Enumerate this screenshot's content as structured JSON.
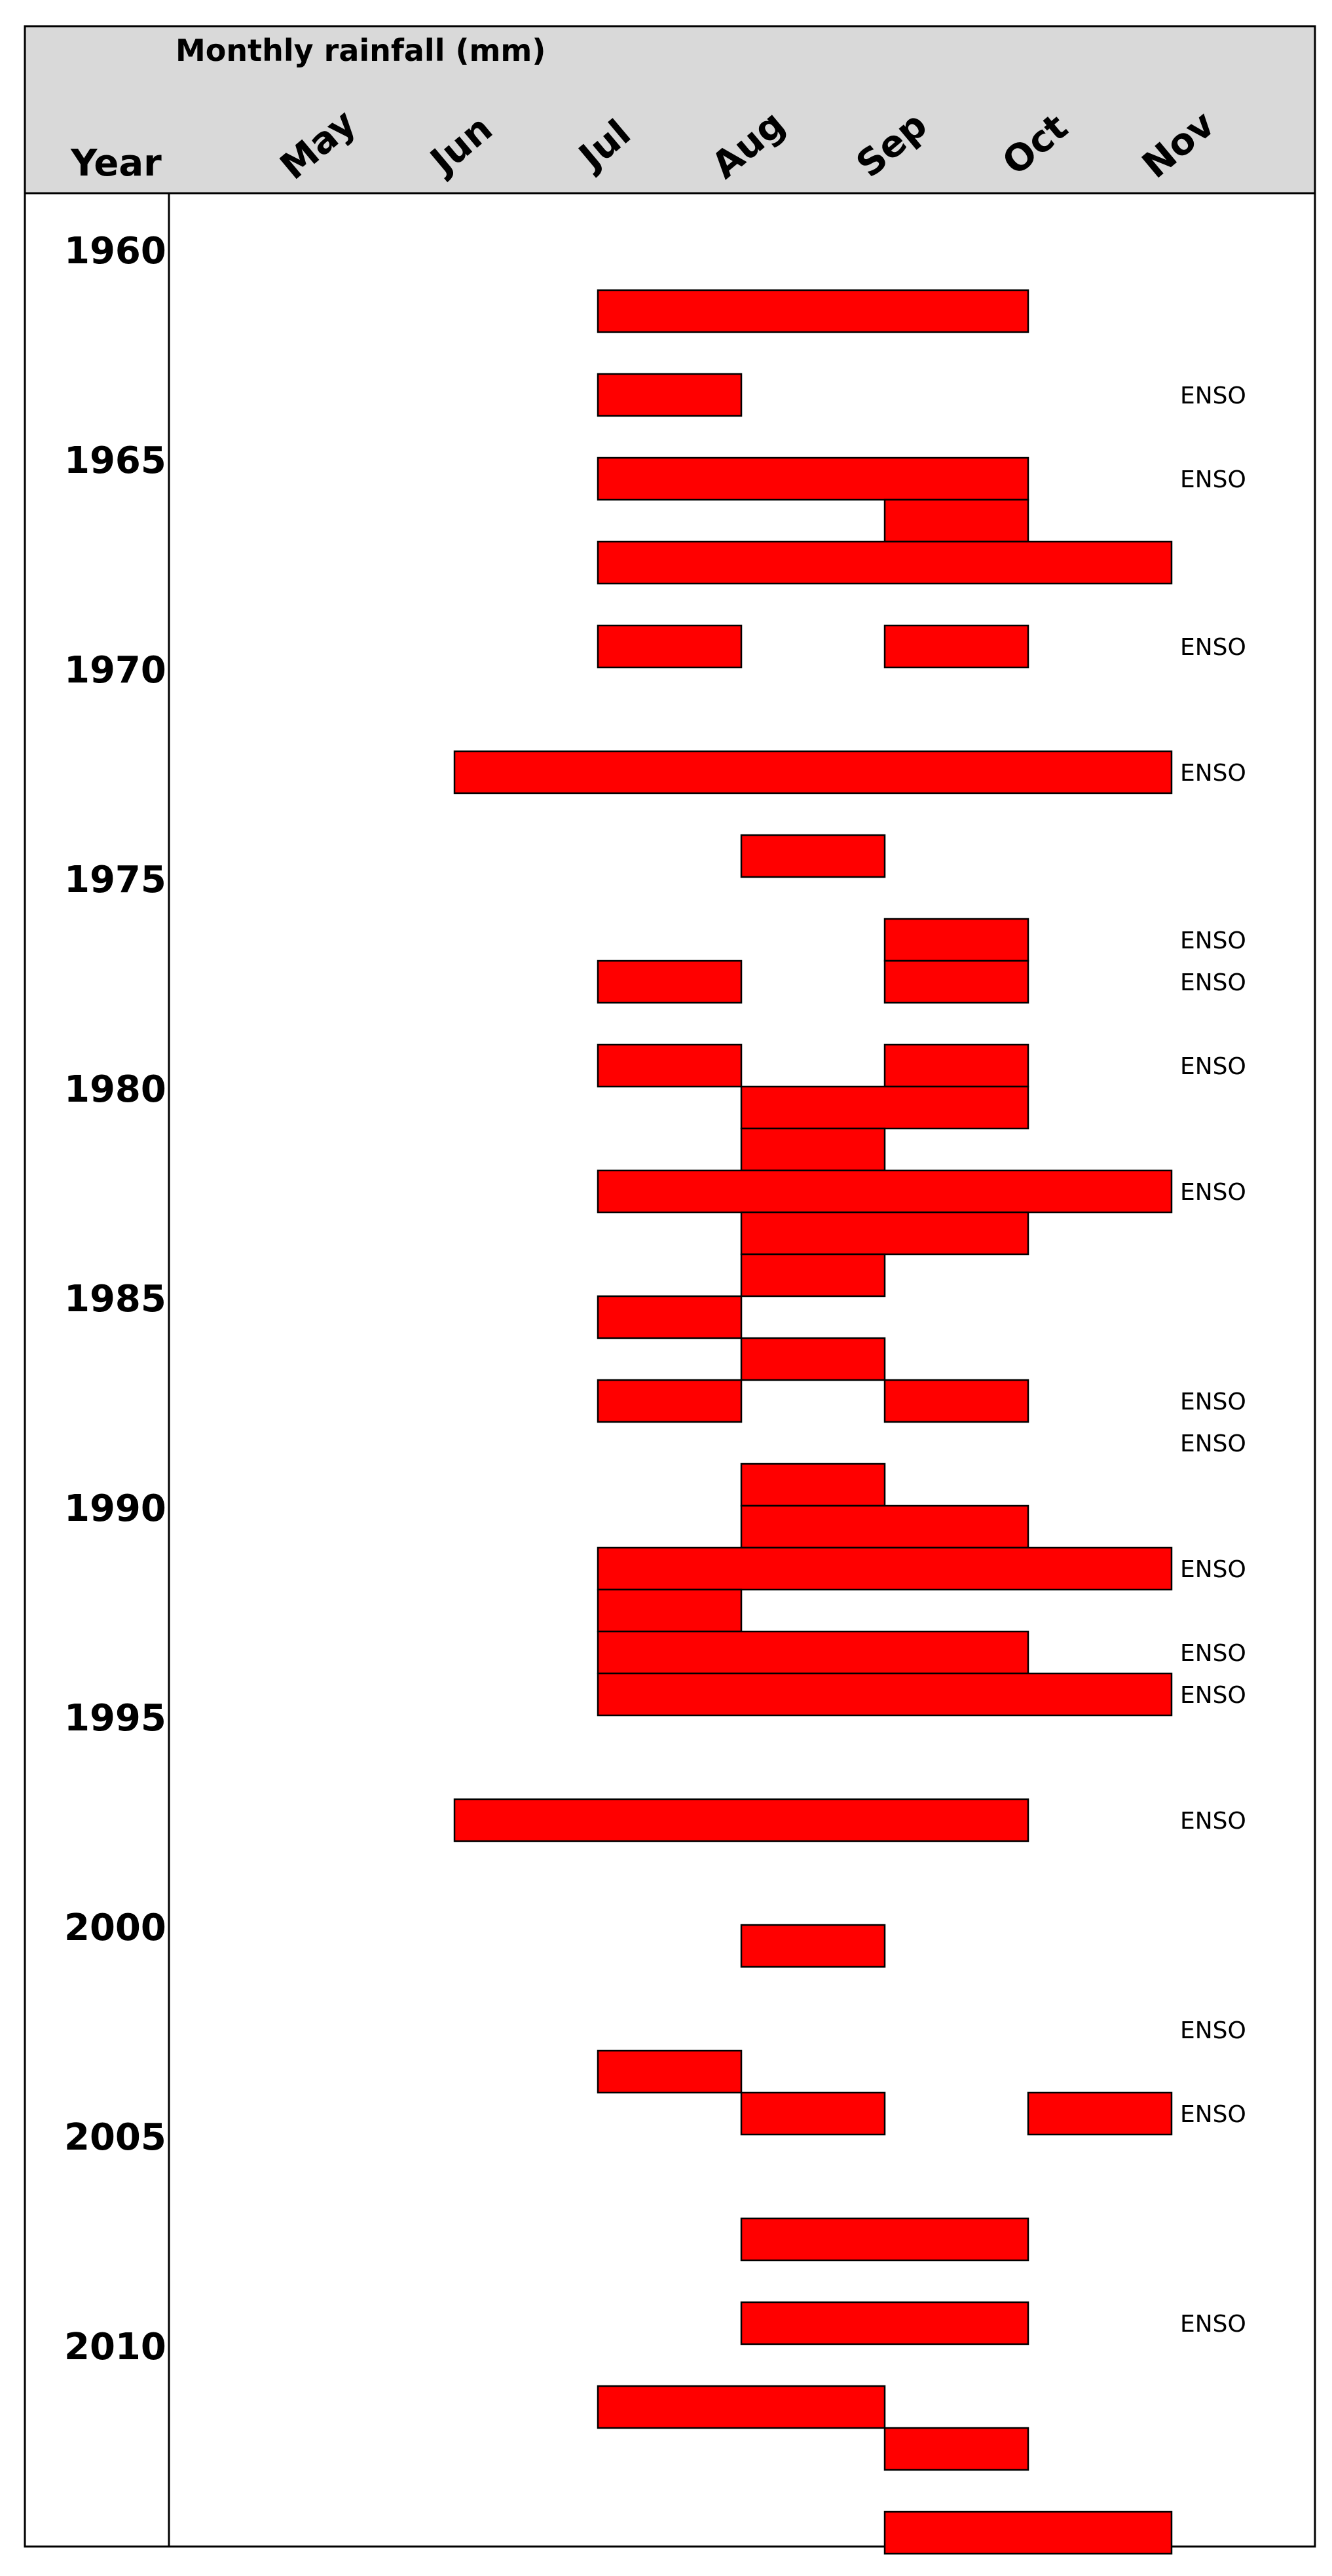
{
  "chart_data": {
    "type": "bar",
    "subtype": "timeline-range",
    "title": "Monthly rainfall (mm)",
    "year_header": "Year",
    "months": [
      "May",
      "Jun",
      "Jul",
      "Aug",
      "Sep",
      "Oct",
      "Nov"
    ],
    "year_ticks": [
      "1960",
      "1965",
      "1970",
      "1975",
      "1980",
      "1985",
      "1990",
      "1995",
      "2000",
      "2005",
      "2010"
    ],
    "year_range": [
      1960,
      2015
    ],
    "bar_color": "#ff0000",
    "header_color": "#d9d9d9",
    "bars": [
      {
        "year": 1961,
        "start": "Jul",
        "end": "Sep"
      },
      {
        "year": 1963,
        "start": "Jul",
        "end": "Jul"
      },
      {
        "year": 1965,
        "start": "Jul",
        "end": "Sep"
      },
      {
        "year": 1966,
        "start": "Sep",
        "end": "Sep"
      },
      {
        "year": 1967,
        "start": "Jul",
        "end": "Oct"
      },
      {
        "year": 1969,
        "start": "Jul",
        "end": "Jul"
      },
      {
        "year": 1969,
        "start": "Sep",
        "end": "Sep"
      },
      {
        "year": 1972,
        "start": "Jun",
        "end": "Oct"
      },
      {
        "year": 1974,
        "start": "Aug",
        "end": "Aug"
      },
      {
        "year": 1976,
        "start": "Sep",
        "end": "Sep"
      },
      {
        "year": 1977,
        "start": "Jul",
        "end": "Jul"
      },
      {
        "year": 1977,
        "start": "Sep",
        "end": "Sep"
      },
      {
        "year": 1979,
        "start": "Jul",
        "end": "Jul"
      },
      {
        "year": 1979,
        "start": "Sep",
        "end": "Sep"
      },
      {
        "year": 1980,
        "start": "Aug",
        "end": "Sep"
      },
      {
        "year": 1981,
        "start": "Aug",
        "end": "Aug"
      },
      {
        "year": 1982,
        "start": "Jul",
        "end": "Oct"
      },
      {
        "year": 1983,
        "start": "Aug",
        "end": "Sep"
      },
      {
        "year": 1984,
        "start": "Aug",
        "end": "Aug"
      },
      {
        "year": 1985,
        "start": "Jul",
        "end": "Jul"
      },
      {
        "year": 1986,
        "start": "Aug",
        "end": "Aug"
      },
      {
        "year": 1987,
        "start": "Jul",
        "end": "Jul"
      },
      {
        "year": 1987,
        "start": "Sep",
        "end": "Sep"
      },
      {
        "year": 1989,
        "start": "Aug",
        "end": "Aug"
      },
      {
        "year": 1990,
        "start": "Aug",
        "end": "Sep"
      },
      {
        "year": 1991,
        "start": "Jul",
        "end": "Oct"
      },
      {
        "year": 1992,
        "start": "Jul",
        "end": "Jul"
      },
      {
        "year": 1993,
        "start": "Jul",
        "end": "Sep"
      },
      {
        "year": 1994,
        "start": "Jul",
        "end": "Oct"
      },
      {
        "year": 1997,
        "start": "Jun",
        "end": "Sep"
      },
      {
        "year": 2000,
        "start": "Aug",
        "end": "Aug"
      },
      {
        "year": 2003,
        "start": "Jul",
        "end": "Jul"
      },
      {
        "year": 2004,
        "start": "Aug",
        "end": "Aug"
      },
      {
        "year": 2004,
        "start": "Oct",
        "end": "Oct"
      },
      {
        "year": 2007,
        "start": "Aug",
        "end": "Sep"
      },
      {
        "year": 2009,
        "start": "Aug",
        "end": "Sep"
      },
      {
        "year": 2011,
        "start": "Jul",
        "end": "Aug"
      },
      {
        "year": 2012,
        "start": "Sep",
        "end": "Sep"
      },
      {
        "year": 2014,
        "start": "Sep",
        "end": "Oct"
      }
    ],
    "annotations": [
      {
        "year": 1963,
        "text": "ENSO"
      },
      {
        "year": 1965,
        "text": "ENSO"
      },
      {
        "year": 1969,
        "text": "ENSO"
      },
      {
        "year": 1972,
        "text": "ENSO"
      },
      {
        "year": 1976,
        "text": "ENSO"
      },
      {
        "year": 1977,
        "text": "ENSO"
      },
      {
        "year": 1979,
        "text": "ENSO"
      },
      {
        "year": 1982,
        "text": "ENSO"
      },
      {
        "year": 1987,
        "text": "ENSO"
      },
      {
        "year": 1988,
        "text": "ENSO"
      },
      {
        "year": 1991,
        "text": "ENSO"
      },
      {
        "year": 1993,
        "text": "ENSO"
      },
      {
        "year": 1994,
        "text": "ENSO"
      },
      {
        "year": 1997,
        "text": "ENSO"
      },
      {
        "year": 2002,
        "text": "ENSO"
      },
      {
        "year": 2004,
        "text": "ENSO"
      },
      {
        "year": 2009,
        "text": "ENSO"
      }
    ]
  }
}
